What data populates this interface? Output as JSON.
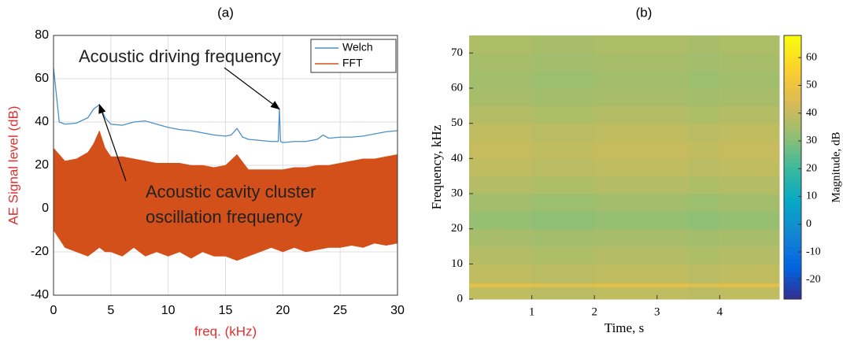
{
  "chart_data": [
    {
      "type": "line",
      "title": "(a)",
      "xlabel": "freq. (kHz)",
      "ylabel": "AE Signal level (dB)",
      "xlim": [
        0,
        30
      ],
      "ylim": [
        -40,
        80
      ],
      "xticks": [
        0,
        5,
        10,
        15,
        20,
        25,
        30
      ],
      "yticks": [
        -40,
        -20,
        0,
        20,
        40,
        60,
        80
      ],
      "grid": true,
      "legend": "upper right",
      "series": [
        {
          "name": "Welch",
          "color": "#4a90c8",
          "x": [
            0,
            0.5,
            1,
            2,
            3,
            3.5,
            4,
            4.5,
            5,
            6,
            7,
            8,
            9,
            10,
            11,
            12,
            13,
            14,
            15,
            15.5,
            16,
            16.5,
            17,
            18,
            19,
            19.6,
            19.7,
            19.8,
            20,
            21,
            22,
            23,
            23.5,
            24,
            25,
            26,
            27,
            28,
            29,
            30
          ],
          "values": [
            65,
            40,
            39,
            39.5,
            42,
            46,
            48,
            42,
            39,
            38.5,
            40,
            40.5,
            39,
            37.5,
            36.5,
            36,
            35,
            34,
            33.5,
            34,
            37,
            33,
            32,
            31.5,
            31,
            31,
            46,
            31,
            30.5,
            31,
            31,
            32,
            34,
            32.5,
            33,
            33,
            33.5,
            34.5,
            35.5,
            36
          ]
        },
        {
          "name": "FFT",
          "color": "#d4501a",
          "x": [
            0,
            1,
            2,
            3,
            3.5,
            4,
            4.5,
            5,
            6,
            7,
            8,
            9,
            10,
            11,
            12,
            13,
            14,
            15,
            16,
            17,
            18,
            19,
            20,
            21,
            22,
            23,
            24,
            25,
            26,
            27,
            28,
            29,
            30
          ],
          "values": [
            28,
            22,
            23,
            26,
            30,
            36,
            28,
            24,
            24,
            23,
            22,
            21,
            21,
            21,
            20,
            20,
            19,
            20,
            25,
            18,
            18,
            18,
            18,
            19,
            19,
            20,
            20,
            21,
            22,
            23,
            23,
            24,
            25
          ],
          "lower": [
            -10,
            -18,
            -20,
            -22,
            -20,
            -18,
            -20,
            -20,
            -22,
            -18,
            -22,
            -20,
            -22,
            -20,
            -23,
            -20,
            -22,
            -22,
            -24,
            -22,
            -20,
            -18,
            -20,
            -18,
            -20,
            -19,
            -18,
            -18,
            -17,
            -18,
            -16,
            -17,
            -16
          ]
        }
      ],
      "annotations": [
        {
          "text": [
            "Acoustic driving frequency"
          ],
          "x": 19.7,
          "y": 46
        },
        {
          "text": [
            "Acoustic cavity cluster",
            "oscillation frequency"
          ],
          "x": 4,
          "y": 48
        }
      ]
    },
    {
      "type": "heatmap",
      "title": "(b)",
      "xlabel": "Time, s",
      "ylabel": "Frequency, kHz",
      "colorbar_label": "Magnitude, dB",
      "colormap": "parula",
      "xlim": [
        0,
        4.95
      ],
      "ylim": [
        0,
        75
      ],
      "xticks": [
        1,
        2,
        3,
        4
      ],
      "yticks": [
        0,
        10,
        20,
        30,
        40,
        50,
        60,
        70
      ],
      "clim": [
        -27,
        68
      ],
      "cticks": [
        -20,
        -10,
        0,
        10,
        20,
        30,
        40,
        50,
        60
      ],
      "x_bins": [
        0,
        0.5,
        1,
        1.5,
        2,
        2.5,
        3,
        3.5,
        4,
        4.5,
        4.95
      ],
      "y_bins": [
        0,
        3.5,
        4.5,
        10,
        15,
        20,
        25,
        30,
        35,
        40,
        45,
        50,
        55,
        60,
        65,
        70,
        75
      ],
      "values": [
        [
          40,
          40,
          39,
          39,
          40,
          40,
          40,
          39,
          40,
          40
        ],
        [
          48,
          48,
          47,
          47,
          48,
          48,
          48,
          47,
          48,
          48
        ],
        [
          40,
          40,
          39,
          39,
          40,
          40,
          40,
          39,
          40,
          40
        ],
        [
          38,
          38,
          37,
          37,
          38,
          38,
          38,
          37,
          38,
          38
        ],
        [
          36,
          36,
          35,
          35,
          36,
          36,
          36,
          35,
          36,
          36
        ],
        [
          33,
          33,
          32,
          32,
          33,
          33,
          33,
          32,
          33,
          33
        ],
        [
          35,
          35,
          34,
          34,
          35,
          35,
          35,
          34,
          35,
          35
        ],
        [
          38,
          38,
          37,
          37,
          38,
          38,
          38,
          37,
          38,
          38
        ],
        [
          40,
          40,
          39,
          39,
          40,
          40,
          40,
          39,
          40,
          40
        ],
        [
          41,
          41,
          40,
          40,
          41,
          41,
          41,
          40,
          41,
          41
        ],
        [
          40,
          40,
          39,
          39,
          40,
          40,
          40,
          39,
          40,
          40
        ],
        [
          38,
          38,
          37,
          37,
          38,
          38,
          38,
          37,
          38,
          38
        ],
        [
          36,
          36,
          35,
          35,
          36,
          36,
          36,
          35,
          36,
          36
        ],
        [
          35,
          35,
          34,
          34,
          35,
          35,
          35,
          34,
          35,
          35
        ],
        [
          36,
          36,
          35,
          35,
          36,
          36,
          36,
          35,
          36,
          36
        ],
        [
          37,
          37,
          36,
          36,
          37,
          37,
          37,
          36,
          37,
          37
        ]
      ]
    }
  ]
}
